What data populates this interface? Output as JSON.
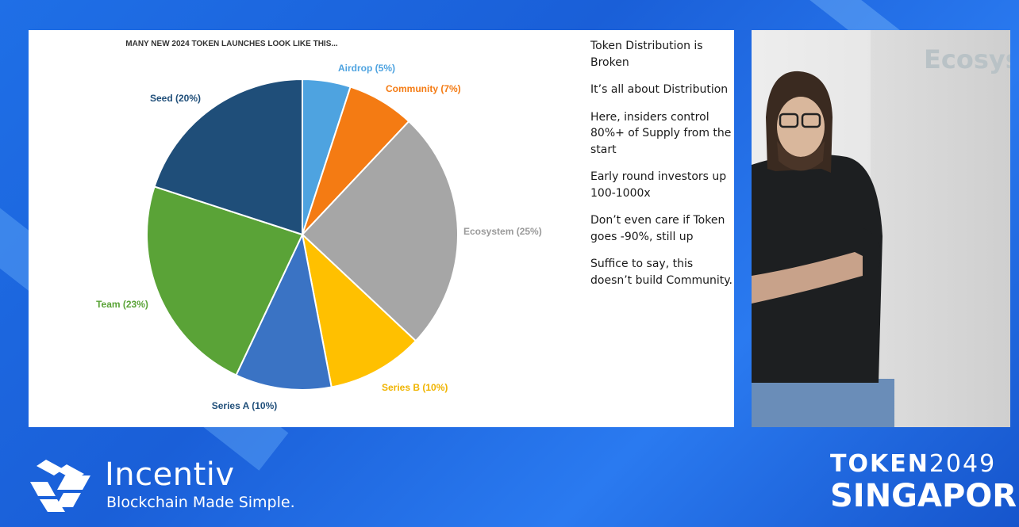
{
  "chart_data": {
    "type": "pie",
    "title": "MANY NEW 2024 TOKEN LAUNCHES LOOK LIKE THIS...",
    "slices": [
      {
        "label": "Airdrop (5%)",
        "value": 5,
        "color": "#4ea3e0"
      },
      {
        "label": "Community (7%)",
        "value": 7,
        "color": "#f47b13"
      },
      {
        "label": "Ecosystem (25%)",
        "value": 25,
        "color": "#a6a6a6"
      },
      {
        "label": "Series B (10%)",
        "value": 10,
        "color": "#ffc000"
      },
      {
        "label": "Series A (10%)",
        "value": 10,
        "color": "#3a73c4"
      },
      {
        "label": "Team (23%)",
        "value": 23,
        "color": "#5aa337"
      },
      {
        "label": "Seed (20%)",
        "value": 20,
        "color": "#1f4e79"
      }
    ]
  },
  "label_colors": {
    "airdrop": "#4ea3e0",
    "community": "#f47b13",
    "ecosystem": "#9a9a9a",
    "series_b": "#f0b400",
    "series_a": "#1f4e79",
    "team": "#5aa337",
    "seed": "#1f4e79"
  },
  "bullets": [
    "Token Distribution is Broken",
    "It’s all about Distribution",
    "Here, insiders control 80%+ of Supply from the start",
    "Early round investors up 100-1000x",
    "Don’t even care if Token goes -90%, still up",
    "Suffice to say, this doesn’t build Community."
  ],
  "video": {
    "partial_text": "Ecosys"
  },
  "brand": {
    "name": "Incentiv",
    "tagline": "Blockchain Made Simple."
  },
  "event": {
    "line1_a": "TOKEN",
    "line1_b": "2049",
    "line2": "SINGAPORE"
  }
}
